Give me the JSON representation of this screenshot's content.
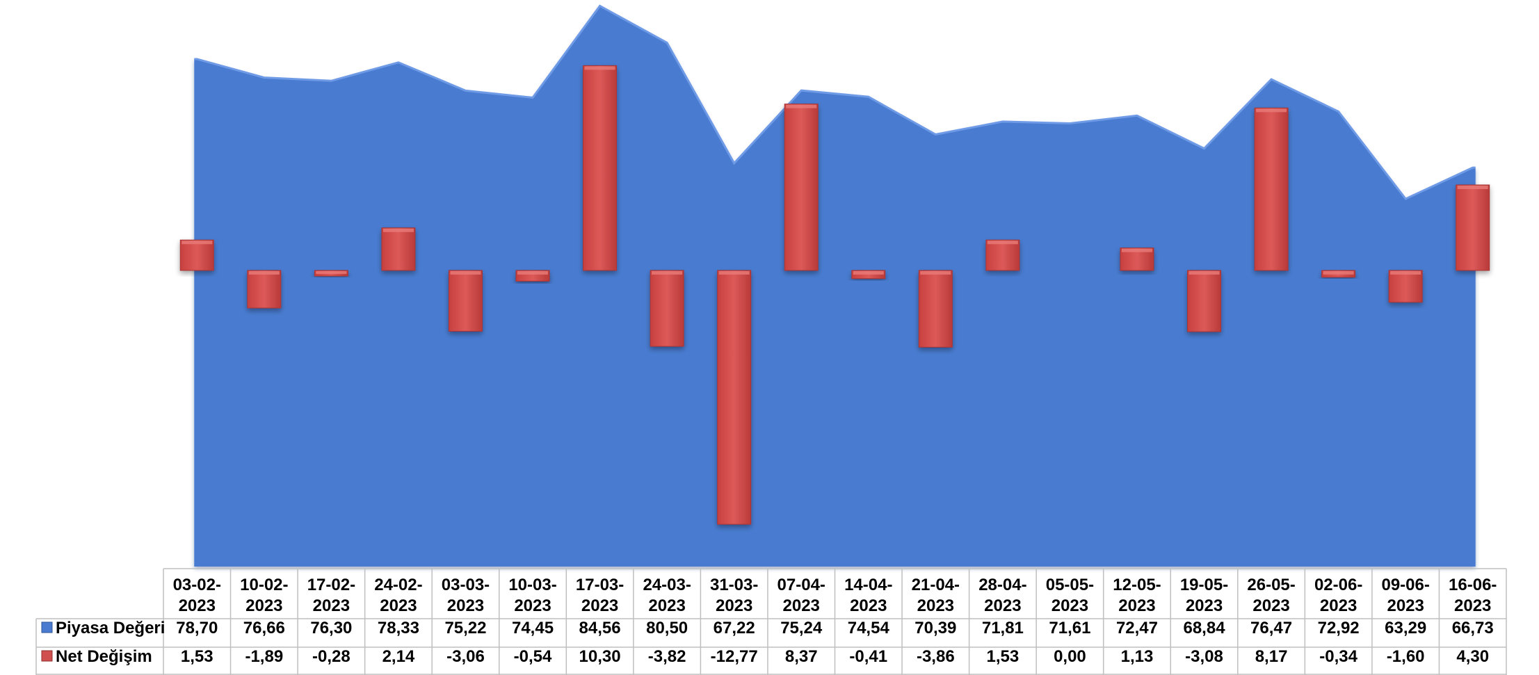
{
  "chart_data": {
    "type": "bar",
    "categories": [
      [
        "03-02-",
        "2023"
      ],
      [
        "10-02-",
        "2023"
      ],
      [
        "17-02-",
        "2023"
      ],
      [
        "24-02-",
        "2023"
      ],
      [
        "03-03-",
        "2023"
      ],
      [
        "10-03-",
        "2023"
      ],
      [
        "17-03-",
        "2023"
      ],
      [
        "24-03-",
        "2023"
      ],
      [
        "31-03-",
        "2023"
      ],
      [
        "07-04-",
        "2023"
      ],
      [
        "14-04-",
        "2023"
      ],
      [
        "21-04-",
        "2023"
      ],
      [
        "28-04-",
        "2023"
      ],
      [
        "05-05-",
        "2023"
      ],
      [
        "12-05-",
        "2023"
      ],
      [
        "19-05-",
        "2023"
      ],
      [
        "26-05-",
        "2023"
      ],
      [
        "02-06-",
        "2023"
      ],
      [
        "09-06-",
        "2023"
      ],
      [
        "16-06-",
        "2023"
      ]
    ],
    "series": [
      {
        "name": "Piyasa Değeri",
        "chart_kind": "area",
        "color": "#4a7bd1",
        "values": [
          78.7,
          76.66,
          76.3,
          78.33,
          75.22,
          74.45,
          84.56,
          80.5,
          67.22,
          75.24,
          74.54,
          70.39,
          71.81,
          71.61,
          72.47,
          68.84,
          76.47,
          72.92,
          63.29,
          66.73
        ],
        "labels": [
          "78,70",
          "76,66",
          "76,30",
          "78,33",
          "75,22",
          "74,45",
          "84,56",
          "80,50",
          "67,22",
          "75,24",
          "74,54",
          "70,39",
          "71,81",
          "71,61",
          "72,47",
          "68,84",
          "76,47",
          "72,92",
          "63,29",
          "66,73"
        ]
      },
      {
        "name": "Net Değişim",
        "chart_kind": "bar",
        "color": "#d0504f",
        "values": [
          1.53,
          -1.89,
          -0.28,
          2.14,
          -3.06,
          -0.54,
          10.3,
          -3.82,
          -12.77,
          8.37,
          -0.41,
          -3.86,
          1.53,
          0.0,
          1.13,
          -3.08,
          8.17,
          -0.34,
          -1.6,
          4.3
        ],
        "labels": [
          "1,53",
          "-1,89",
          "-0,28",
          "2,14",
          "-3,06",
          "-0,54",
          "10,30",
          "-3,82",
          "-12,77",
          "8,37",
          "-0,41",
          "-3,86",
          "1,53",
          "0,00",
          "1,13",
          "-3,08",
          "8,17",
          "-0,34",
          "-1,60",
          "4,30"
        ]
      }
    ],
    "primary_axis_range": [
      0,
      90
    ],
    "secondary_axis_range": [
      -15,
      15
    ],
    "title": "",
    "xlabel": "",
    "ylabel": "",
    "grid": false,
    "legend": "data-table"
  }
}
